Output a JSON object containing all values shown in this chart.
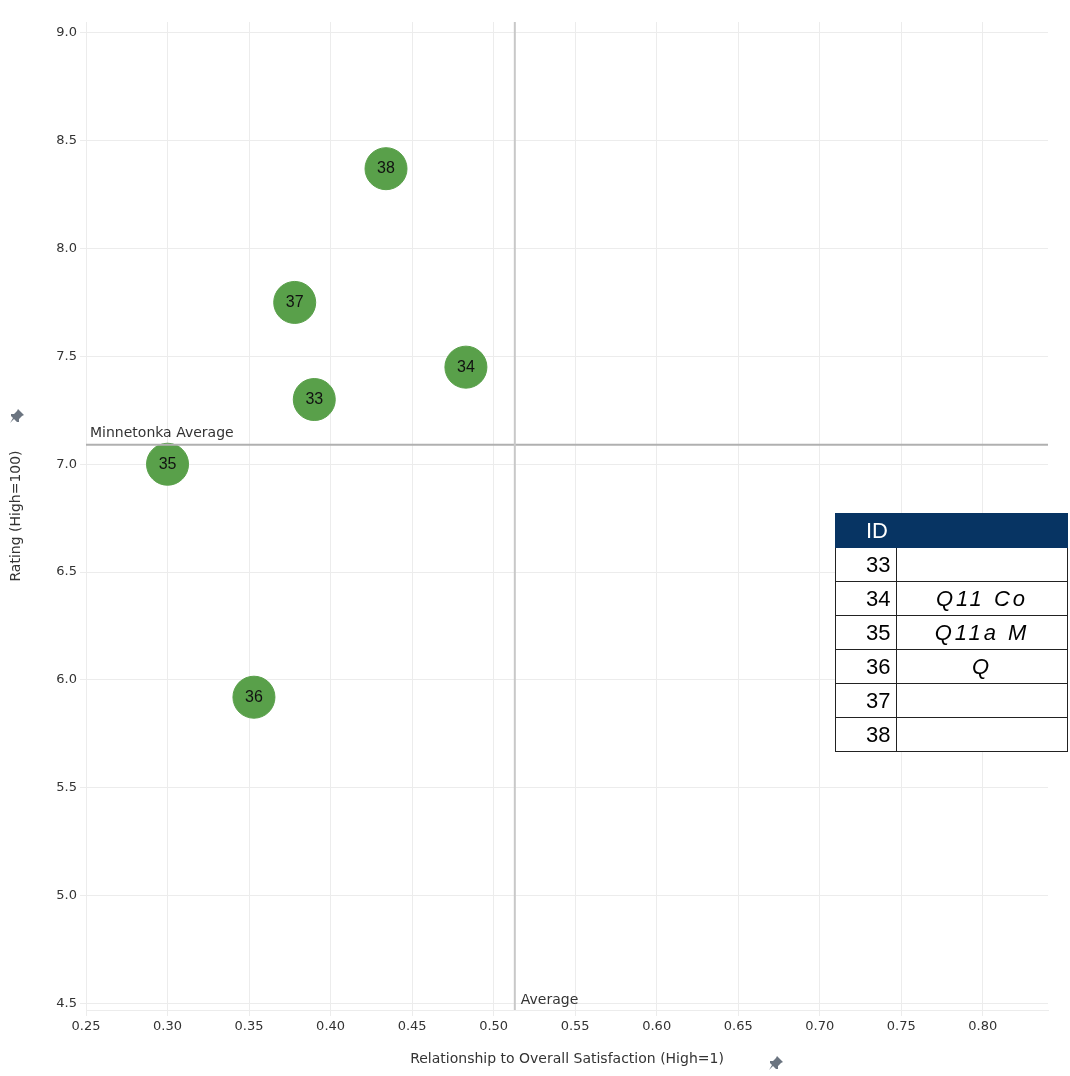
{
  "chart_data": {
    "type": "scatter",
    "xlabel": "Relationship to Overall Satisfaction (High=1)",
    "ylabel": "Rating (High=100)",
    "series": [
      {
        "name": "33",
        "color": "#59a04a",
        "x": [
          0.39
        ],
        "values": [
          7.3
        ]
      },
      {
        "name": "34",
        "color": "#59a04a",
        "x": [
          0.483
        ],
        "values": [
          7.45
        ]
      },
      {
        "name": "35",
        "color": "#59a04a",
        "x": [
          0.3
        ],
        "values": [
          7.0
        ]
      },
      {
        "name": "36",
        "color": "#59a04a",
        "x": [
          0.353
        ],
        "values": [
          5.92
        ]
      },
      {
        "name": "37",
        "color": "#59a04a",
        "x": [
          0.378
        ],
        "values": [
          7.75
        ]
      },
      {
        "name": "38",
        "color": "#59a04a",
        "x": [
          0.434
        ],
        "values": [
          8.37
        ]
      }
    ],
    "marker": "circle",
    "xlim": [
      0.25,
      0.84
    ],
    "ylim": [
      4.47,
      9.05
    ],
    "xticks": [
      0.25,
      {
        "value": 0.3,
        "label": "0.30"
      },
      0.35,
      {
        "value": 0.4,
        "label": "0.40"
      },
      0.45,
      {
        "value": 0.5,
        "label": "0.50"
      },
      0.55,
      {
        "value": 0.6,
        "label": "0.60"
      },
      0.65,
      {
        "value": 0.7,
        "label": "0.70"
      },
      0.75,
      {
        "value": 0.8,
        "label": "0.80"
      }
    ],
    "yticks": [
      4.5,
      {
        "value": 5,
        "label": "5.0"
      },
      5.5,
      {
        "value": 6,
        "label": "6.0"
      },
      6.5,
      {
        "value": 7,
        "label": "7.0"
      },
      7.5,
      {
        "value": 8,
        "label": "8.0"
      },
      8.5,
      {
        "value": 9,
        "label": "9.0"
      }
    ],
    "ref_lines": [
      {
        "axis": "y",
        "value": 7.09,
        "label": "Minnetonka Average",
        "color": "#b0b0b0"
      },
      {
        "axis": "x",
        "value": 0.513,
        "label": "Average",
        "color": "#c8c8c8"
      }
    ],
    "annotations": [
      "ID",
      "33",
      "34",
      "35",
      "36",
      "37",
      "38",
      "Q11 Co",
      "Q11a M",
      "Q"
    ],
    "grid": true,
    "legend": false
  }
}
